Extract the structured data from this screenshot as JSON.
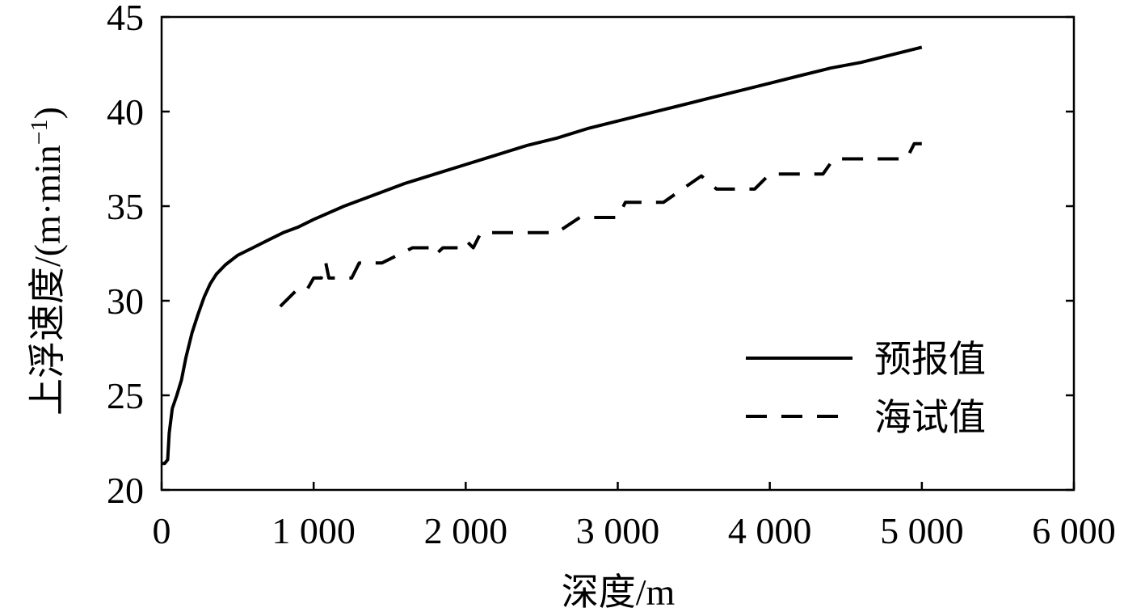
{
  "chart_data": {
    "type": "line",
    "xlabel": "深度/m",
    "ylabel_main": "上浮速度/(m·min",
    "ylabel_sup": "−1",
    "ylabel_close": ")",
    "xlim": [
      0,
      6000
    ],
    "ylim": [
      20,
      45
    ],
    "x_ticks": [
      {
        "value": 0,
        "label": "0"
      },
      {
        "value": 1000,
        "label": "1 000"
      },
      {
        "value": 2000,
        "label": "2 000"
      },
      {
        "value": 3000,
        "label": "3 000"
      },
      {
        "value": 4000,
        "label": "4 000"
      },
      {
        "value": 5000,
        "label": "5 000"
      },
      {
        "value": 6000,
        "label": "6 000"
      }
    ],
    "y_ticks": [
      {
        "value": 20,
        "label": "20"
      },
      {
        "value": 25,
        "label": "25"
      },
      {
        "value": 30,
        "label": "30"
      },
      {
        "value": 35,
        "label": "35"
      },
      {
        "value": 40,
        "label": "40"
      },
      {
        "value": 45,
        "label": "45"
      }
    ],
    "grid": false,
    "legend_position": "lower-right",
    "series": [
      {
        "name": "预报值",
        "style": "solid",
        "color": "#000000",
        "points": [
          [
            0,
            21.4
          ],
          [
            20,
            21.4
          ],
          [
            40,
            21.6
          ],
          [
            50,
            23.0
          ],
          [
            70,
            24.3
          ],
          [
            100,
            25.0
          ],
          [
            130,
            25.8
          ],
          [
            160,
            27.0
          ],
          [
            200,
            28.3
          ],
          [
            240,
            29.3
          ],
          [
            280,
            30.2
          ],
          [
            320,
            30.9
          ],
          [
            360,
            31.4
          ],
          [
            420,
            31.9
          ],
          [
            500,
            32.4
          ],
          [
            600,
            32.8
          ],
          [
            700,
            33.2
          ],
          [
            800,
            33.6
          ],
          [
            900,
            33.9
          ],
          [
            1000,
            34.3
          ],
          [
            1200,
            35.0
          ],
          [
            1400,
            35.6
          ],
          [
            1600,
            36.2
          ],
          [
            1800,
            36.7
          ],
          [
            2000,
            37.2
          ],
          [
            2200,
            37.7
          ],
          [
            2400,
            38.2
          ],
          [
            2600,
            38.6
          ],
          [
            2800,
            39.1
          ],
          [
            3000,
            39.5
          ],
          [
            3200,
            39.9
          ],
          [
            3400,
            40.3
          ],
          [
            3600,
            40.7
          ],
          [
            3800,
            41.1
          ],
          [
            4000,
            41.5
          ],
          [
            4200,
            41.9
          ],
          [
            4400,
            42.3
          ],
          [
            4600,
            42.6
          ],
          [
            4800,
            43.0
          ],
          [
            5000,
            43.4
          ]
        ]
      },
      {
        "name": "海试值",
        "style": "dashed",
        "color": "#000000",
        "points": [
          [
            780,
            29.7
          ],
          [
            880,
            30.5
          ],
          [
            950,
            30.5
          ],
          [
            1000,
            31.2
          ],
          [
            1050,
            31.2
          ],
          [
            1080,
            32.0
          ],
          [
            1100,
            31.2
          ],
          [
            1250,
            31.2
          ],
          [
            1300,
            32.0
          ],
          [
            1450,
            32.0
          ],
          [
            1650,
            32.8
          ],
          [
            1800,
            32.8
          ],
          [
            1810,
            32.5
          ],
          [
            1850,
            32.8
          ],
          [
            1950,
            32.8
          ],
          [
            2000,
            33.2
          ],
          [
            2050,
            32.8
          ],
          [
            2100,
            33.6
          ],
          [
            2600,
            33.6
          ],
          [
            2750,
            34.4
          ],
          [
            3000,
            34.4
          ],
          [
            3050,
            35.2
          ],
          [
            3300,
            35.2
          ],
          [
            3550,
            36.6
          ],
          [
            3650,
            35.9
          ],
          [
            3900,
            35.9
          ],
          [
            4000,
            36.7
          ],
          [
            4350,
            36.7
          ],
          [
            4420,
            37.5
          ],
          [
            4900,
            37.5
          ],
          [
            4950,
            38.3
          ],
          [
            5000,
            38.3
          ]
        ]
      }
    ]
  }
}
